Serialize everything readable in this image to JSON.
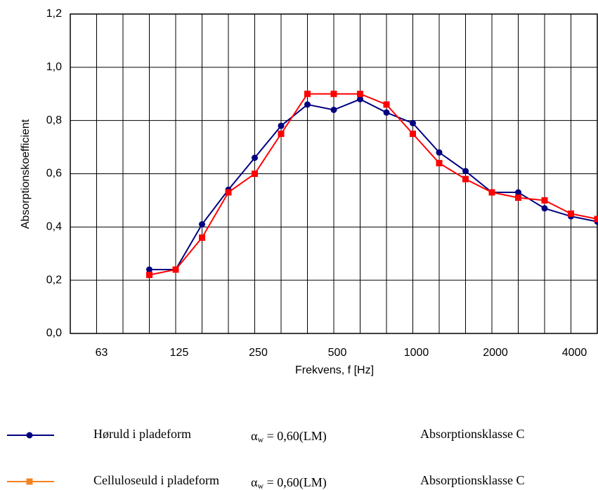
{
  "chart_data": {
    "type": "line",
    "y_label": "Absorptionskoefficient",
    "x_label": "Frekvens, f [Hz]",
    "categories": [
      null,
      "63",
      null,
      null,
      "125",
      null,
      null,
      "250",
      null,
      null,
      "500",
      null,
      null,
      "1000",
      null,
      null,
      "2000",
      null,
      null,
      "4000",
      null
    ],
    "series": [
      {
        "name": "Høruld i pladeform",
        "color": "#000080",
        "marker": "circle",
        "legend_color": "#000080",
        "values": [
          null,
          null,
          null,
          0.24,
          0.24,
          0.41,
          0.54,
          0.66,
          0.78,
          0.86,
          0.84,
          0.88,
          0.83,
          0.79,
          0.68,
          0.61,
          0.53,
          0.53,
          0.47,
          0.44,
          0.42
        ],
        "rating_symbol": "α",
        "rating_sub": "w",
        "rating": " = 0,60(LM)",
        "class": "Absorptionsklasse C"
      },
      {
        "name": "Celluloseuld i pladeform",
        "color": "#ff0000",
        "marker": "square",
        "legend_color": "#f58220",
        "values": [
          null,
          null,
          null,
          0.22,
          0.24,
          0.36,
          0.53,
          0.6,
          0.75,
          0.9,
          0.9,
          0.9,
          0.86,
          0.75,
          0.64,
          0.58,
          0.53,
          0.51,
          0.5,
          0.45,
          0.43
        ],
        "rating_symbol": "α",
        "rating_sub": "w",
        "rating": " = 0,60(LM)",
        "class": "Absorptionsklasse C"
      }
    ],
    "ylim": [
      0,
      1.2
    ],
    "yticks": [
      {
        "value": 0,
        "label": "0,0"
      },
      {
        "value": 0.2,
        "label": "0,2"
      },
      {
        "value": 0.4,
        "label": "0,4"
      },
      {
        "value": 0.6,
        "label": "0,6"
      },
      {
        "value": 0.8,
        "label": "0,8"
      },
      {
        "value": 1.0,
        "label": "1,0"
      },
      {
        "value": 1.2,
        "label": "1,2"
      }
    ],
    "grid": true
  }
}
